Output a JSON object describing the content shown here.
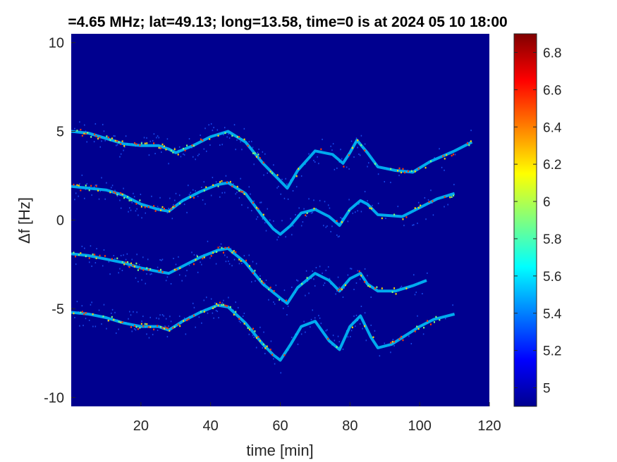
{
  "chart_data": {
    "type": "heatmap",
    "title": "=4.65 MHz;  lat=49.13; long=13.58, time=0 is at 2024 05 10 18:00",
    "xlabel": "time [min]",
    "ylabel": "Δf [Hz]",
    "xlim": [
      0,
      120
    ],
    "ylim": [
      -10.5,
      10.5
    ],
    "xticks": [
      20,
      40,
      60,
      80,
      100,
      120
    ],
    "yticks": [
      10,
      5,
      0,
      -5,
      -10
    ],
    "colorbar": {
      "colormap": "jet",
      "clim": [
        4.9,
        6.9
      ],
      "ticks": [
        6.8,
        6.6,
        6.4,
        6.2,
        6,
        5.8,
        5.6,
        5.4,
        5.2,
        5
      ]
    },
    "background_color": "#00008f",
    "traces": [
      {
        "offset": 5,
        "points": [
          [
            0,
            5.0
          ],
          [
            5,
            4.9
          ],
          [
            10,
            4.6
          ],
          [
            15,
            4.3
          ],
          [
            20,
            4.2
          ],
          [
            25,
            4.2
          ],
          [
            28,
            4.0
          ],
          [
            30,
            3.8
          ],
          [
            35,
            4.2
          ],
          [
            40,
            4.7
          ],
          [
            45,
            5.0
          ],
          [
            50,
            4.4
          ],
          [
            55,
            3.2
          ],
          [
            60,
            2.2
          ],
          [
            62,
            1.8
          ],
          [
            65,
            2.8
          ],
          [
            70,
            3.9
          ],
          [
            75,
            3.7
          ],
          [
            78,
            3.2
          ],
          [
            80,
            3.8
          ],
          [
            82,
            4.5
          ],
          [
            85,
            3.8
          ],
          [
            88,
            3.0
          ],
          [
            93,
            2.8
          ],
          [
            98,
            2.7
          ],
          [
            103,
            3.3
          ],
          [
            110,
            3.9
          ],
          [
            115,
            4.4
          ]
        ]
      },
      {
        "offset": 1.8,
        "points": [
          [
            0,
            1.9
          ],
          [
            5,
            1.8
          ],
          [
            10,
            1.7
          ],
          [
            15,
            1.4
          ],
          [
            20,
            0.9
          ],
          [
            25,
            0.6
          ],
          [
            28,
            0.5
          ],
          [
            32,
            1.1
          ],
          [
            37,
            1.6
          ],
          [
            42,
            2.0
          ],
          [
            45,
            2.1
          ],
          [
            50,
            1.5
          ],
          [
            55,
            0.2
          ],
          [
            58,
            -0.5
          ],
          [
            60,
            -0.8
          ],
          [
            63,
            -0.3
          ],
          [
            66,
            0.4
          ],
          [
            70,
            0.6
          ],
          [
            74,
            0.2
          ],
          [
            77,
            -0.3
          ],
          [
            80,
            0.6
          ],
          [
            83,
            1.1
          ],
          [
            85,
            0.9
          ],
          [
            88,
            0.3
          ],
          [
            95,
            0.2
          ],
          [
            100,
            0.7
          ],
          [
            105,
            1.2
          ],
          [
            110,
            1.5
          ]
        ]
      },
      {
        "offset": -2,
        "points": [
          [
            0,
            -1.9
          ],
          [
            5,
            -2.0
          ],
          [
            10,
            -2.2
          ],
          [
            15,
            -2.4
          ],
          [
            20,
            -2.7
          ],
          [
            25,
            -2.9
          ],
          [
            28,
            -3.0
          ],
          [
            32,
            -2.6
          ],
          [
            37,
            -2.1
          ],
          [
            42,
            -1.7
          ],
          [
            45,
            -1.6
          ],
          [
            50,
            -2.4
          ],
          [
            55,
            -3.6
          ],
          [
            60,
            -4.4
          ],
          [
            62,
            -4.7
          ],
          [
            65,
            -3.8
          ],
          [
            70,
            -3.0
          ],
          [
            74,
            -3.4
          ],
          [
            77,
            -4.0
          ],
          [
            80,
            -3.3
          ],
          [
            83,
            -3.0
          ],
          [
            85,
            -3.6
          ],
          [
            88,
            -4.0
          ],
          [
            93,
            -4.0
          ],
          [
            98,
            -3.7
          ],
          [
            102,
            -3.4
          ]
        ]
      },
      {
        "offset": -5.3,
        "points": [
          [
            0,
            -5.2
          ],
          [
            5,
            -5.3
          ],
          [
            10,
            -5.5
          ],
          [
            15,
            -5.8
          ],
          [
            20,
            -6.0
          ],
          [
            25,
            -6.0
          ],
          [
            28,
            -6.2
          ],
          [
            32,
            -5.7
          ],
          [
            37,
            -5.2
          ],
          [
            42,
            -4.8
          ],
          [
            45,
            -4.9
          ],
          [
            50,
            -5.8
          ],
          [
            55,
            -7.0
          ],
          [
            58,
            -7.6
          ],
          [
            60,
            -7.9
          ],
          [
            63,
            -7.0
          ],
          [
            66,
            -6.0
          ],
          [
            70,
            -5.7
          ],
          [
            74,
            -6.8
          ],
          [
            77,
            -7.3
          ],
          [
            80,
            -6.0
          ],
          [
            83,
            -5.4
          ],
          [
            86,
            -6.6
          ],
          [
            88,
            -7.2
          ],
          [
            92,
            -7.0
          ],
          [
            96,
            -6.5
          ],
          [
            100,
            -6.0
          ],
          [
            104,
            -5.6
          ],
          [
            110,
            -5.3
          ]
        ]
      }
    ]
  }
}
